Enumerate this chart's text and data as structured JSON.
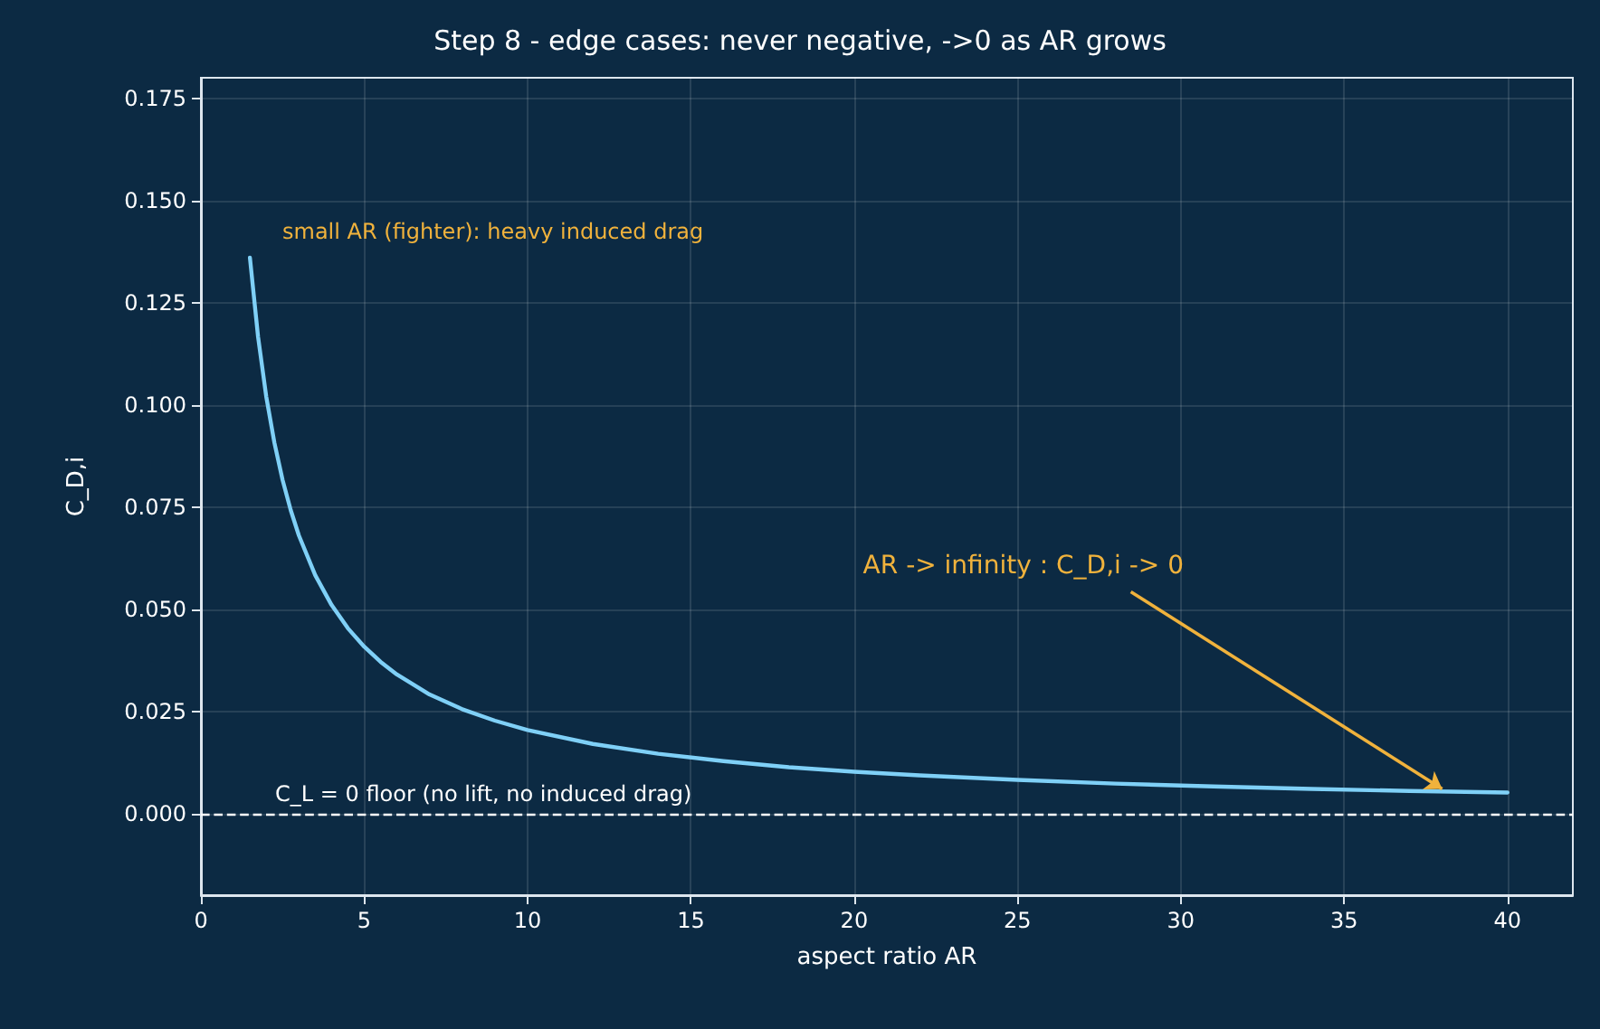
{
  "chart_data": {
    "type": "line",
    "title": "Step 8 - edge cases: never negative, ->0 as AR grows",
    "xlabel": "aspect ratio AR",
    "ylabel": "C_D,i",
    "x": [
      1.5,
      1.75,
      2,
      2.25,
      2.5,
      2.75,
      3,
      3.5,
      4,
      4.5,
      5,
      5.5,
      6,
      7,
      8,
      9,
      10,
      12,
      14,
      16,
      18,
      20,
      22,
      25,
      28,
      31,
      34,
      37,
      40
    ],
    "series": [
      {
        "color": "#7fd0f7",
        "values": [
          0.136,
          0.1166,
          0.102,
          0.0907,
          0.0816,
          0.0742,
          0.068,
          0.0583,
          0.051,
          0.0453,
          0.0408,
          0.0371,
          0.034,
          0.0291,
          0.0255,
          0.0227,
          0.0204,
          0.017,
          0.0146,
          0.0128,
          0.0113,
          0.0102,
          0.0093,
          0.0082,
          0.0073,
          0.0066,
          0.006,
          0.0055,
          0.0051
        ]
      }
    ],
    "xlim": [
      0,
      42
    ],
    "xticks": [
      0,
      5,
      10,
      15,
      20,
      25,
      30,
      35,
      40
    ],
    "ylim": [
      -0.02,
      0.18
    ],
    "yticks": [
      {
        "value": 0,
        "label": "0.000"
      },
      {
        "value": 0.025,
        "label": "0.025"
      },
      {
        "value": 0.05,
        "label": "0.050"
      },
      {
        "value": 0.075,
        "label": "0.075"
      },
      {
        "value": 0.1,
        "label": "0.100"
      },
      {
        "value": 0.125,
        "label": "0.125"
      },
      {
        "value": 0.15,
        "label": "0.150"
      },
      {
        "value": 0.175,
        "label": "0.175"
      }
    ],
    "grid": true,
    "marker": "none",
    "line_style": "solid",
    "ref_lines": [
      {
        "axis": "y",
        "value": 0,
        "label": "C_L = 0 floor (no lift, no induced drag)",
        "color": "#ffffff",
        "line_style": "dashed"
      }
    ],
    "annotations": [
      "small AR (fighter): heavy induced drag",
      {
        "text": "AR -> infinity : C_D,i -> 0",
        "x": 38,
        "y": 0.006
      }
    ]
  }
}
